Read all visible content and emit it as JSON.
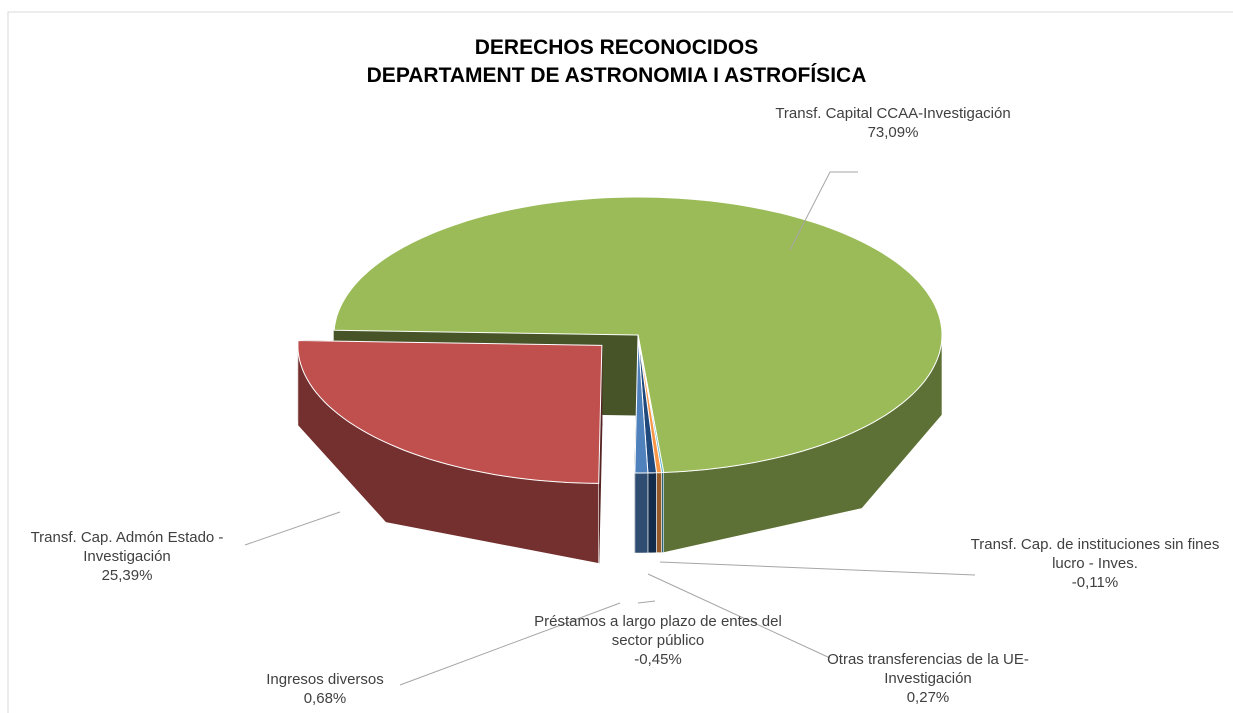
{
  "chart_data": {
    "type": "pie3d",
    "title_lines": [
      "DERECHOS RECONOCIDOS",
      "DEPARTAMENT DE ASTRONOMIA I ASTROFÍSICA"
    ],
    "categories": [
      "Transf. Capital CCAA-Investigación",
      "Transf. Cap. de instituciones sin fines lucro - Inves.",
      "Otras transferencias de la UE- Investigación",
      "Préstamos a largo plazo de entes del sector público",
      "Ingresos diversos",
      "Transf. Cap. Admón Estado - Investigación"
    ],
    "values": [
      73.09,
      -0.11,
      0.27,
      -0.45,
      0.68,
      25.39
    ],
    "value_labels": [
      "73,09%",
      "-0,11%",
      "0,27%",
      "-0,45%",
      "0,68%",
      "25,39%"
    ],
    "colors": [
      "#9bbb59",
      "#4bacc6",
      "#f79646",
      "#1f497d",
      "#4f81bd",
      "#c0504d"
    ],
    "exploded": [
      5
    ]
  }
}
